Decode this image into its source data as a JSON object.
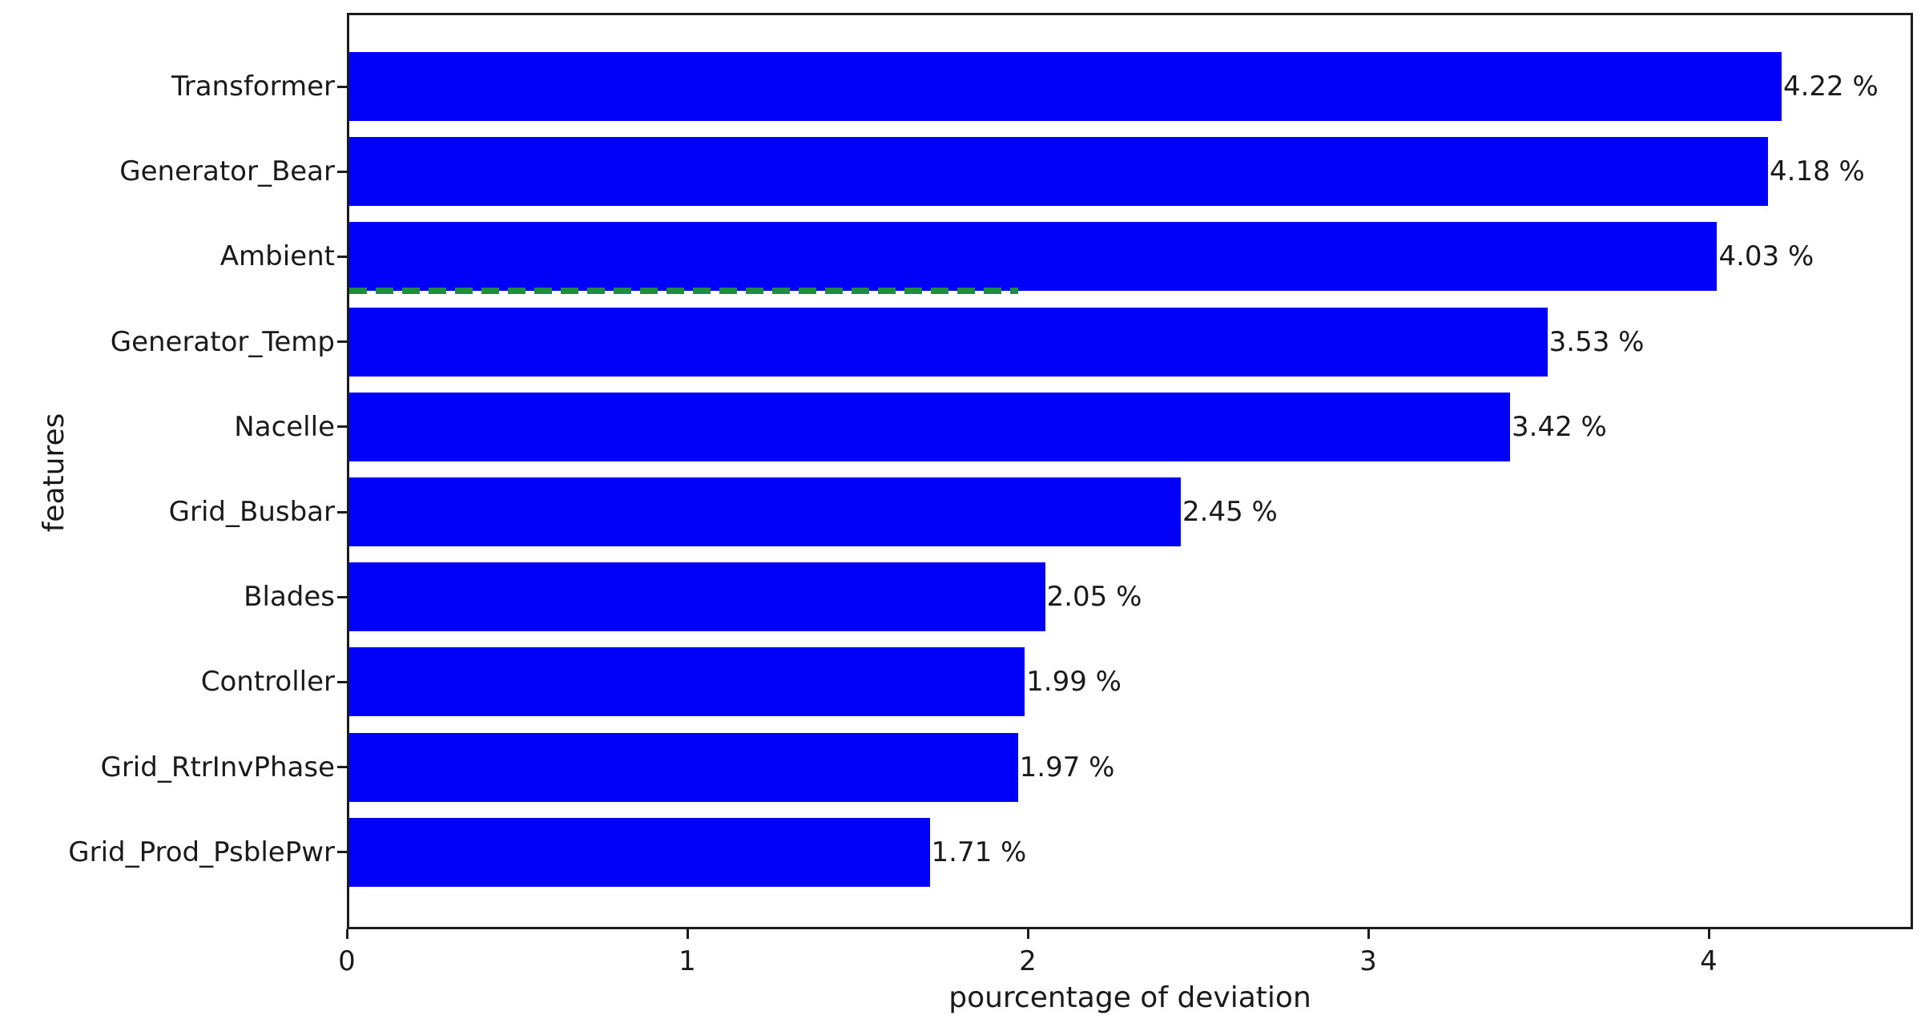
{
  "chart_data": {
    "type": "bar",
    "orientation": "horizontal",
    "title": "",
    "xlabel": "pourcentage of deviation",
    "ylabel": "features",
    "categories": [
      "Transformer",
      "Generator_Bear",
      "Ambient",
      "Generator_Temp",
      "Nacelle",
      "Grid_Busbar",
      "Blades",
      "Controller",
      "Grid_RtrInvPhase",
      "Grid_Prod_PsblePwr"
    ],
    "values": [
      4.22,
      4.18,
      4.03,
      3.53,
      3.42,
      2.45,
      2.05,
      1.99,
      1.97,
      1.71
    ],
    "value_labels": [
      "4.22 %",
      "4.18 %",
      "4.03 %",
      "3.53 %",
      "3.42 %",
      "2.45 %",
      "2.05 %",
      "1.99 %",
      "1.97 %",
      "1.71 %"
    ],
    "xticks": [
      "0",
      "1",
      "2",
      "3",
      "4"
    ],
    "xtick_values": [
      0,
      1,
      2,
      3,
      4
    ],
    "xlim": [
      0,
      4.6
    ],
    "grid": false,
    "legend": null,
    "bar_color": "#0000fa",
    "spine_color": "#1c1c1c",
    "text_color": "#1a1a1a",
    "threshold_line": {
      "color": "#228b3c",
      "style": "dashed",
      "x_start": 0,
      "x_end": 1.97,
      "position": "at bottom edge of Ambient bar (between Ambient and Generator_Temp rows)"
    }
  }
}
